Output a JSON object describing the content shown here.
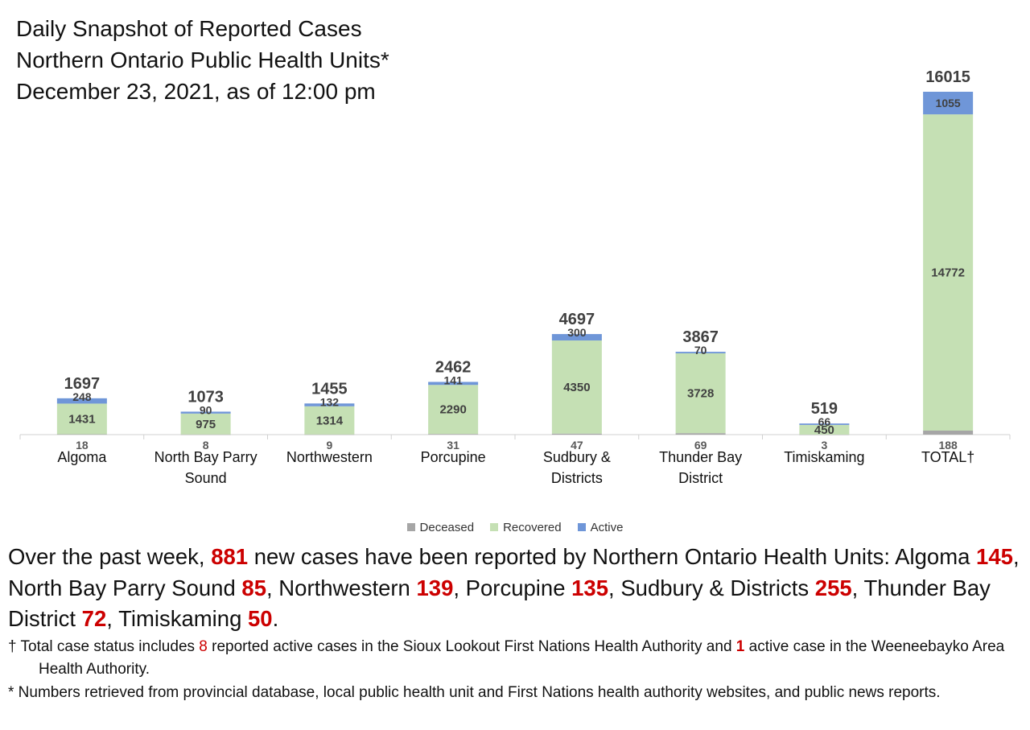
{
  "title": {
    "line1": "Daily Snapshot of Reported Cases",
    "line2": "Northern Ontario Public Health Units*",
    "line3": "December 23, 2021, as of 12:00 pm"
  },
  "colors": {
    "deceased": "#a6a6a6",
    "recovered": "#c5e0b4",
    "active": "#6f96d8"
  },
  "chart_data": {
    "type": "bar",
    "stacked": true,
    "categories": [
      [
        "Algoma"
      ],
      [
        "North Bay Parry",
        "Sound"
      ],
      [
        "Northwestern"
      ],
      [
        "Porcupine"
      ],
      [
        "Sudbury &",
        "Districts"
      ],
      [
        "Thunder Bay",
        "District"
      ],
      [
        "Timiskaming"
      ],
      [
        "TOTAL†"
      ]
    ],
    "series": [
      {
        "name": "Deceased",
        "key": "deceased",
        "values": [
          18,
          8,
          9,
          31,
          47,
          69,
          3,
          188
        ]
      },
      {
        "name": "Recovered",
        "key": "recovered",
        "values": [
          1431,
          975,
          1314,
          2290,
          4350,
          3728,
          450,
          14772
        ]
      },
      {
        "name": "Active",
        "key": "active",
        "values": [
          248,
          90,
          132,
          141,
          300,
          70,
          66,
          1055
        ]
      }
    ],
    "totals": [
      1697,
      1073,
      1455,
      2462,
      4697,
      3867,
      519,
      16015
    ],
    "ylim": [
      0,
      16015
    ],
    "grid": false,
    "legend_position": "bottom"
  },
  "summary": {
    "p1": "Over the past week, ",
    "week_total": "881",
    "p2": " new cases have been reported by Northern Ontario Health Units:",
    "items": [
      {
        "name": "Algoma ",
        "value": "145",
        "sep": ", "
      },
      {
        "name": "North Bay Parry Sound ",
        "value": "85",
        "sep": ", "
      },
      {
        "name": "Northwestern ",
        "value": "139",
        "sep": ", "
      },
      {
        "name": "Porcupine ",
        "value": "135",
        "sep": ", "
      },
      {
        "name": "Sudbury & Districts ",
        "value": "255",
        "sep": ", "
      },
      {
        "name": "Thunder Bay District ",
        "value": "72",
        "sep": ", "
      },
      {
        "name": "Timiskaming ",
        "value": "50",
        "sep": "."
      }
    ]
  },
  "notes": {
    "total_a": "† Total case status includes ",
    "sioux_count": "8",
    "total_b": " reported active cases in the Sioux Lookout First Nations Health Authority and ",
    "weeneebayko_count": "1",
    "total_c": " active case in the Weeneebayko Area Health Authority.",
    "sources": "* Numbers retrieved from provincial database, local public health unit and First Nations health authority websites, and public news reports."
  }
}
